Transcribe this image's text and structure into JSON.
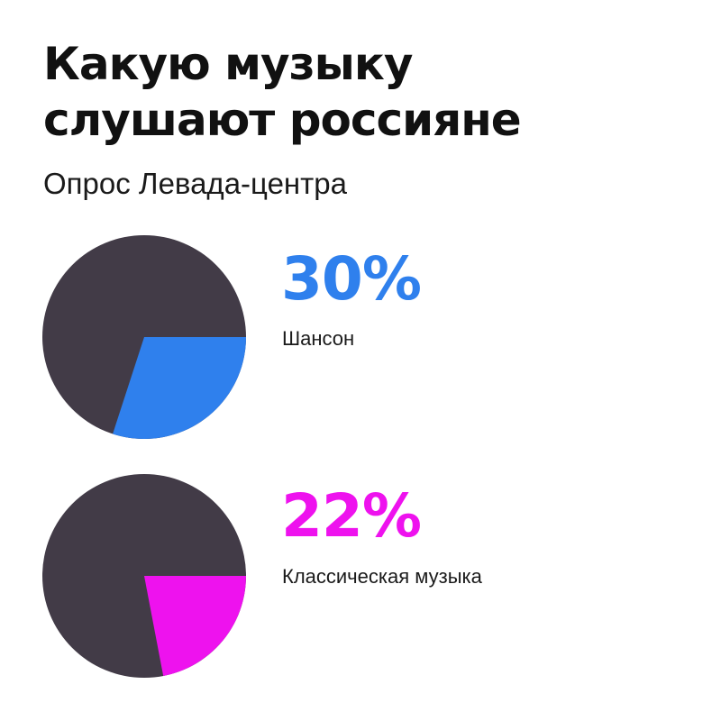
{
  "header": {
    "title_line1": "Какую музыку",
    "title_line2": "слушают россияне",
    "subtitle": "Опрос Левада-центра"
  },
  "colors": {
    "pie_background": "#423b47",
    "chanson": "#2f80ed",
    "classical": "#ee12ee"
  },
  "chart_data": [
    {
      "type": "pie",
      "title": "",
      "categories": [
        "Шансон"
      ],
      "values": [
        30
      ],
      "label": "30%",
      "unit": "%"
    },
    {
      "type": "pie",
      "title": "",
      "categories": [
        "Классическая музыка"
      ],
      "values": [
        22
      ],
      "label": "22%",
      "unit": "%"
    }
  ]
}
